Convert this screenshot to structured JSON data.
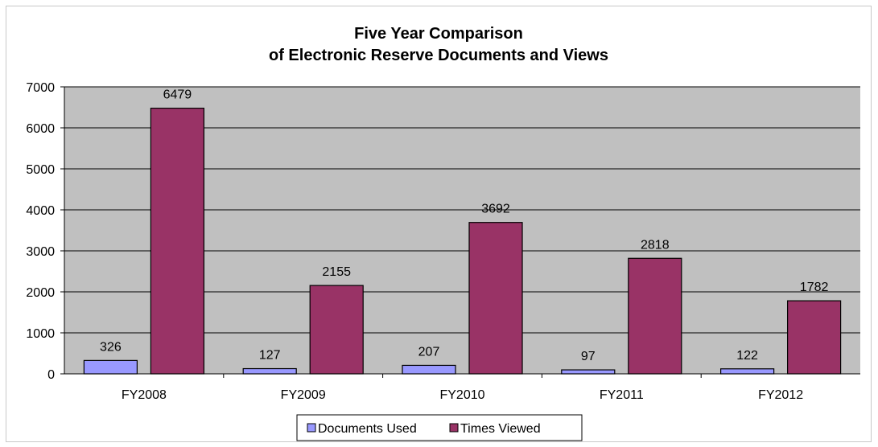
{
  "chart_data": {
    "type": "bar",
    "title_line1": "Five Year Comparison",
    "title_line2": "of Electronic Reserve Documents and Views",
    "categories": [
      "FY2008",
      "FY2009",
      "FY2010",
      "FY2011",
      "FY2012"
    ],
    "series": [
      {
        "name": "Documents Used",
        "values": [
          326,
          127,
          207,
          97,
          122
        ],
        "color": "#9999ff"
      },
      {
        "name": "Times Viewed",
        "values": [
          6479,
          2155,
          3692,
          2818,
          1782
        ],
        "color": "#993366"
      }
    ],
    "ylim": [
      0,
      7000
    ],
    "yticks": [
      0,
      1000,
      2000,
      3000,
      4000,
      5000,
      6000,
      7000
    ],
    "grid": true,
    "plot_background": "#c0c0c0",
    "legend_position": "bottom"
  }
}
